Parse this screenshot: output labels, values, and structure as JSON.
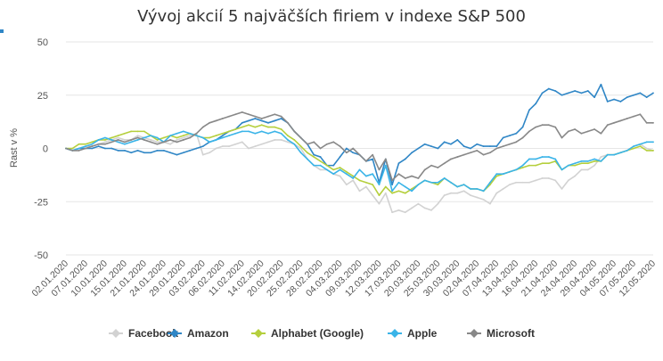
{
  "chart_data": {
    "type": "line",
    "title": "Vývoj akcií 5 najväčších firiem v indexe S&P 500",
    "xlabel": "",
    "ylabel": "Rast v %",
    "ylim": [
      -50,
      50
    ],
    "yticks": [
      50,
      25,
      0,
      -25,
      -50
    ],
    "x_tick_labels": [
      "02.01.2020",
      "07.01.2020",
      "10.01.2020",
      "15.01.2020",
      "21.01.2020",
      "24.01.2020",
      "29.01.2020",
      "03.02.2020",
      "06.02.2020",
      "11.02.2020",
      "14.02.2020",
      "20.02.2020",
      "25.02.2020",
      "28.02.2020",
      "04.03.2020",
      "09.03.2020",
      "12.03.2020",
      "17.03.2020",
      "20.03.2020",
      "25.03.2020",
      "30.03.2020",
      "02.04.2020",
      "07.04.2020",
      "13.04.2020",
      "16.04.2020",
      "21.04.2020",
      "24.04.2020",
      "29.04.2020",
      "04.05.2020",
      "07.05.2020",
      "12.05.2020"
    ],
    "n_points": 91,
    "grid": true,
    "legend_position": "bottom",
    "series": [
      {
        "name": "Facebook",
        "color": "#d2d2d2",
        "values": [
          0,
          -1,
          0,
          1,
          1,
          2,
          3,
          4,
          5,
          4,
          4,
          6,
          5,
          4,
          3,
          3,
          2,
          4,
          5,
          6,
          7,
          -3,
          -2,
          0,
          1,
          1,
          2,
          3,
          0,
          1,
          2,
          3,
          4,
          4,
          3,
          2,
          0,
          -5,
          -8,
          -10,
          -10,
          -12,
          -13,
          -17,
          -15,
          -20,
          -18,
          -22,
          -26,
          -21,
          -30,
          -29,
          -30,
          -28,
          -26,
          -28,
          -29,
          -26,
          -22,
          -21,
          -21,
          -20,
          -22,
          -23,
          -24,
          -26,
          -21,
          -19,
          -17,
          -16,
          -16,
          -16,
          -15,
          -14,
          -14,
          -15,
          -19,
          -15,
          -13,
          -10,
          -10,
          -8,
          -4,
          -3,
          -3,
          -2,
          -1,
          1,
          2,
          0,
          -1
        ]
      },
      {
        "name": "Amazon",
        "color": "#2f86c6",
        "values": [
          0,
          -1,
          0,
          0,
          0,
          1,
          0,
          0,
          -1,
          -1,
          -2,
          -1,
          -2,
          -2,
          -1,
          -1,
          -2,
          -3,
          -2,
          -1,
          0,
          1,
          3,
          4,
          6,
          8,
          9,
          12,
          13,
          14,
          13,
          12,
          13,
          14,
          12,
          8,
          5,
          2,
          -3,
          -4,
          -8,
          -8,
          -4,
          0,
          -2,
          -3,
          -6,
          -5,
          -16,
          -5,
          -17,
          -7,
          -5,
          -2,
          0,
          2,
          1,
          0,
          3,
          2,
          4,
          1,
          0,
          2,
          1,
          1,
          1,
          5,
          6,
          7,
          10,
          18,
          21,
          26,
          28,
          27,
          25,
          26,
          27,
          26,
          27,
          24,
          30,
          22,
          23,
          22,
          24,
          25,
          26,
          24,
          26
        ]
      },
      {
        "name": "Alphabet (Google)",
        "color": "#b5cf3d",
        "values": [
          0,
          0,
          2,
          2,
          3,
          4,
          4,
          5,
          6,
          7,
          8,
          8,
          8,
          6,
          4,
          5,
          6,
          5,
          6,
          7,
          6,
          5,
          5,
          6,
          7,
          8,
          9,
          10,
          11,
          10,
          11,
          10,
          10,
          9,
          6,
          4,
          1,
          -2,
          -4,
          -6,
          -8,
          -10,
          -9,
          -11,
          -13,
          -15,
          -16,
          -17,
          -22,
          -18,
          -21,
          -20,
          -21,
          -19,
          -17,
          -15,
          -16,
          -17,
          -14,
          -16,
          -18,
          -17,
          -19,
          -19,
          -20,
          -17,
          -13,
          -12,
          -11,
          -10,
          -9,
          -8,
          -8,
          -7,
          -7,
          -6,
          -10,
          -8,
          -8,
          -7,
          -7,
          -6,
          -6,
          -3,
          -3,
          -2,
          -1,
          0,
          1,
          -1,
          -1
        ]
      },
      {
        "name": "Apple",
        "color": "#3ab4e8",
        "values": [
          0,
          -1,
          0,
          1,
          2,
          4,
          5,
          4,
          3,
          2,
          3,
          4,
          5,
          6,
          5,
          3,
          6,
          7,
          8,
          7,
          6,
          5,
          3,
          4,
          5,
          6,
          7,
          8,
          8,
          7,
          8,
          7,
          8,
          7,
          4,
          2,
          -2,
          -5,
          -8,
          -8,
          -10,
          -12,
          -10,
          -12,
          -14,
          -10,
          -13,
          -12,
          -17,
          -8,
          -20,
          -16,
          -18,
          -20,
          -17,
          -15,
          -16,
          -16,
          -14,
          -16,
          -18,
          -17,
          -19,
          -19,
          -20,
          -16,
          -12,
          -12,
          -11,
          -10,
          -8,
          -5,
          -5,
          -4,
          -4,
          -5,
          -10,
          -8,
          -7,
          -6,
          -6,
          -5,
          -6,
          -3,
          -3,
          -2,
          -1,
          1,
          2,
          3,
          3
        ]
      },
      {
        "name": "Microsoft",
        "color": "#888888",
        "values": [
          0,
          -1,
          -1,
          0,
          1,
          2,
          2,
          3,
          4,
          3,
          4,
          5,
          4,
          3,
          2,
          3,
          4,
          3,
          4,
          5,
          7,
          10,
          12,
          13,
          14,
          15,
          16,
          17,
          16,
          15,
          14,
          15,
          16,
          15,
          12,
          8,
          5,
          2,
          3,
          0,
          2,
          3,
          1,
          -2,
          0,
          -3,
          -6,
          -3,
          -10,
          -5,
          -15,
          -12,
          -14,
          -13,
          -14,
          -10,
          -8,
          -9,
          -7,
          -5,
          -4,
          -3,
          -2,
          -1,
          -3,
          -2,
          0,
          1,
          2,
          3,
          5,
          8,
          10,
          11,
          11,
          10,
          5,
          8,
          9,
          7,
          8,
          9,
          7,
          11,
          12,
          13,
          14,
          15,
          16,
          12,
          12
        ]
      }
    ]
  }
}
